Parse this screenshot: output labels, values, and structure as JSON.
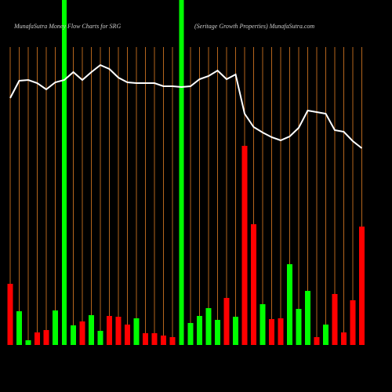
{
  "chart_data": {
    "type": "money-flow",
    "title": "MunafaSutra  Money Flow  Charts for SRG",
    "subtitle": "(Seritage    Growth Properties) MunafaSutra.com",
    "categories": [
      null,
      null,
      null,
      null,
      null,
      null,
      null,
      null,
      null,
      null,
      null,
      null,
      null,
      null,
      null,
      null,
      null,
      null,
      null,
      null,
      null,
      null,
      null,
      null,
      null,
      null,
      null,
      null,
      null,
      null,
      null,
      null,
      null,
      null,
      null,
      null,
      null,
      null,
      null,
      null
    ],
    "series": [
      {
        "color": "#ff0000",
        "values": [
          78,
          null,
          null,
          16,
          19,
          null,
          null,
          null,
          30,
          null,
          null,
          37,
          36,
          26,
          null,
          15,
          15,
          12,
          10,
          null,
          null,
          null,
          null,
          null,
          60,
          null,
          254,
          154,
          null,
          33,
          34,
          null,
          null,
          null,
          10,
          null,
          65,
          16,
          57,
          151
        ]
      },
      {
        "color": "#00ff00",
        "values": [
          null,
          43,
          6,
          null,
          null,
          44,
          null,
          25,
          null,
          38,
          18,
          null,
          null,
          null,
          34,
          null,
          null,
          null,
          null,
          null,
          28,
          37,
          47,
          32,
          null,
          36,
          null,
          null,
          52,
          null,
          null,
          103,
          46,
          69,
          null,
          26,
          null,
          null,
          null,
          null
        ]
      }
    ],
    "line": {
      "color": "#ffffff",
      "values": [
        315,
        337,
        338,
        334,
        326,
        335,
        338,
        348,
        338,
        348,
        357,
        352,
        341,
        335,
        334,
        334,
        334,
        330,
        330,
        329,
        330,
        339,
        343,
        350,
        339,
        345,
        295,
        278,
        271,
        265,
        261,
        266,
        277,
        299,
        297,
        295,
        274,
        272,
        260,
        251
      ]
    },
    "highlights": [
      6,
      19
    ],
    "highlight_color": "#00ff00",
    "column_line_color": "#b5651d",
    "background": "#000000"
  }
}
